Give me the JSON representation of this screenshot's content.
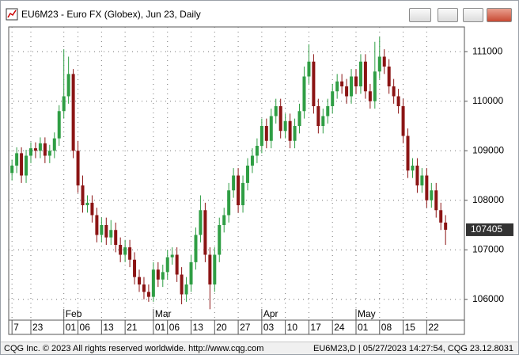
{
  "window": {
    "title": "EU6M23 - Euro FX (Globex), Jun 23, Daily"
  },
  "chart_data": {
    "type": "candlestick",
    "open": [
      108550,
      108700,
      108950,
      108500,
      108900,
      109050,
      109000,
      109150,
      108900,
      109000,
      109250,
      109800,
      110100,
      110550,
      109000,
      108300,
      107900,
      107950,
      107700,
      107300,
      107500,
      107250,
      107400,
      107100,
      106900,
      107050,
      106800,
      106450,
      106300,
      106150,
      106050,
      106600,
      106400,
      106550,
      106850,
      106900,
      106500,
      106100,
      106300,
      106750,
      107300,
      107800,
      106900,
      106300,
      106900,
      107500,
      107700,
      108200,
      108500,
      107900,
      108350,
      108700,
      108900,
      109100,
      109500,
      109200,
      109700,
      109900,
      109400,
      109600,
      109200,
      109500,
      109800,
      110500,
      110800,
      109900,
      109500,
      109700,
      109900,
      110200,
      110400,
      110300,
      110100,
      110500,
      110300,
      110800,
      110200,
      110000,
      110600,
      110900,
      110700,
      110300,
      110100,
      109900,
      109300,
      108600,
      108700,
      108300,
      108500,
      108000,
      108200,
      107800,
      107550
    ],
    "high": [
      108820,
      109070,
      109070,
      109020,
      109170,
      109170,
      109270,
      109270,
      109120,
      109370,
      109920,
      111050,
      110900,
      110650,
      109200,
      108500,
      108100,
      108100,
      107850,
      107650,
      107650,
      107600,
      107550,
      107250,
      107200,
      107200,
      106950,
      106600,
      106450,
      106300,
      106750,
      106750,
      106700,
      107000,
      107050,
      107050,
      106650,
      106450,
      106900,
      107450,
      108100,
      107950,
      107050,
      107050,
      107650,
      107850,
      108350,
      108650,
      108650,
      108500,
      108850,
      109050,
      109250,
      109650,
      109650,
      109850,
      110050,
      110050,
      109750,
      109750,
      109650,
      109950,
      110700,
      111150,
      110950,
      110050,
      109850,
      110050,
      110350,
      110550,
      110550,
      110450,
      110650,
      110650,
      110950,
      110950,
      110350,
      111200,
      111300,
      111050,
      110850,
      110450,
      110250,
      110050,
      109450,
      108850,
      108850,
      108650,
      108650,
      108350,
      108350,
      107950,
      107700
    ],
    "low": [
      108400,
      108550,
      108350,
      108350,
      108750,
      108850,
      108850,
      108750,
      108750,
      108850,
      109100,
      109650,
      109950,
      108850,
      108150,
      107750,
      107750,
      107550,
      107150,
      107150,
      107100,
      107100,
      106950,
      106750,
      106750,
      106650,
      106300,
      106150,
      106000,
      105950,
      105950,
      106250,
      106250,
      106400,
      106700,
      106350,
      105900,
      105950,
      106150,
      106600,
      107150,
      106750,
      105800,
      106150,
      106750,
      107350,
      107550,
      108050,
      107750,
      107750,
      108200,
      108550,
      108750,
      108950,
      109050,
      109050,
      109550,
      109250,
      109250,
      109050,
      109050,
      109350,
      109650,
      110350,
      109750,
      109350,
      109350,
      109550,
      109750,
      110050,
      110150,
      109950,
      109950,
      110150,
      110150,
      110050,
      109850,
      109850,
      110450,
      110550,
      110150,
      109950,
      109750,
      109150,
      108450,
      108450,
      108150,
      108150,
      107850,
      107850,
      107650,
      107400,
      107100
    ],
    "close": [
      108700,
      108950,
      108500,
      108900,
      109050,
      109000,
      109150,
      108900,
      109000,
      109250,
      109800,
      110100,
      110550,
      109000,
      108300,
      107900,
      107950,
      107700,
      107300,
      107500,
      107250,
      107400,
      107100,
      106900,
      107050,
      106800,
      106450,
      106300,
      106150,
      106050,
      106600,
      106400,
      106550,
      106850,
      106900,
      106500,
      106100,
      106300,
      106750,
      107300,
      107800,
      106900,
      106300,
      106900,
      107500,
      107700,
      108200,
      108500,
      107900,
      108350,
      108700,
      108900,
      109100,
      109500,
      109200,
      109700,
      109900,
      109400,
      109600,
      109200,
      109500,
      109800,
      110500,
      110800,
      109900,
      109500,
      109700,
      109900,
      110200,
      110400,
      110300,
      110100,
      110500,
      110300,
      110800,
      110200,
      110000,
      110600,
      110900,
      110700,
      110300,
      110100,
      109900,
      109300,
      108600,
      108700,
      108300,
      108500,
      108000,
      108200,
      107800,
      107550,
      107405
    ],
    "up_color": "#2f9e44",
    "down_color": "#8b1414",
    "ylim": [
      105580,
      111500
    ],
    "yticks": [
      106000,
      107000,
      108000,
      109000,
      110000,
      111000
    ],
    "xlim": [
      -0.7,
      96
    ],
    "xticks": [
      {
        "value": 0,
        "label": "7"
      },
      {
        "value": 4,
        "label": "23"
      },
      {
        "value": 11,
        "label": "01"
      },
      {
        "value": 14,
        "label": "06"
      },
      {
        "value": 19,
        "label": "13"
      },
      {
        "value": 24,
        "label": "21"
      },
      {
        "value": 30,
        "label": "01"
      },
      {
        "value": 33,
        "label": "06"
      },
      {
        "value": 38,
        "label": "13"
      },
      {
        "value": 43,
        "label": "20"
      },
      {
        "value": 48,
        "label": "27"
      },
      {
        "value": 53,
        "label": "03"
      },
      {
        "value": 58,
        "label": "10"
      },
      {
        "value": 63,
        "label": "17"
      },
      {
        "value": 68,
        "label": "24"
      },
      {
        "value": 73,
        "label": "01"
      },
      {
        "value": 78,
        "label": "08"
      },
      {
        "value": 83,
        "label": "15"
      },
      {
        "value": 88,
        "label": "22"
      }
    ],
    "month_labels": [
      {
        "value": 11,
        "label": "Feb"
      },
      {
        "value": 30,
        "label": "Mar"
      },
      {
        "value": 53,
        "label": "Apr"
      },
      {
        "value": 73,
        "label": "May"
      }
    ],
    "grid": true
  },
  "status_bar": {
    "left": "CQG Inc. © 2023 All rights reserved worldwide. http://www.cqg.com",
    "right": "EU6M23,D | 05/27/2023 14:27:54, CQG 23.12.8031"
  }
}
